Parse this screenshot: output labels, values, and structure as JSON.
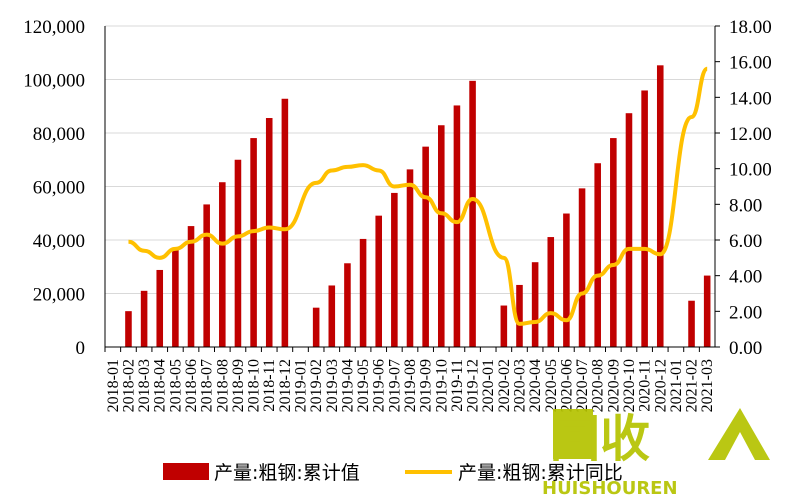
{
  "chart_data": {
    "type": "bar+line",
    "title": "",
    "xlabel": "",
    "ylabel": "",
    "y2label": "",
    "ylim": [
      0,
      120000
    ],
    "y2lim": [
      0,
      18
    ],
    "yticks": [
      "0",
      "20,000",
      "40,000",
      "60,000",
      "80,000",
      "100,000",
      "120,000"
    ],
    "y2ticks": [
      "0.00",
      "2.00",
      "4.00",
      "6.00",
      "8.00",
      "10.00",
      "12.00",
      "14.00",
      "16.00",
      "18.00"
    ],
    "grid": "horizontal",
    "legend_position": "bottom",
    "categories": [
      "2018-01",
      "2018-02",
      "2018-03",
      "2018-04",
      "2018-05",
      "2018-06",
      "2018-07",
      "2018-08",
      "2018-09",
      "2018-10",
      "2018-11",
      "2018-12",
      "2019-01",
      "2019-02",
      "2019-03",
      "2019-04",
      "2019-05",
      "2019-06",
      "2019-07",
      "2019-08",
      "2019-09",
      "2019-10",
      "2019-11",
      "2019-12",
      "2020-01",
      "2020-02",
      "2020-03",
      "2020-04",
      "2020-05",
      "2020-06",
      "2020-07",
      "2020-08",
      "2020-09",
      "2020-10",
      "2020-11",
      "2020-12",
      "2021-01",
      "2021-02",
      "2021-03"
    ],
    "series": [
      {
        "name": "产量:粗钢:累计值",
        "kind": "bar",
        "axis": "left",
        "color": "#c00000",
        "values": [
          null,
          13400,
          21000,
          28800,
          37200,
          45200,
          53300,
          61600,
          70000,
          78100,
          85600,
          92800,
          null,
          14700,
          23000,
          31300,
          40400,
          49100,
          57600,
          66400,
          74900,
          82900,
          90300,
          99500,
          null,
          15500,
          23200,
          31700,
          41100,
          49900,
          59300,
          68700,
          78100,
          87400,
          95900,
          105300,
          null,
          17300,
          26700
        ]
      },
      {
        "name": "产量:粗钢:累计同比",
        "kind": "line",
        "axis": "right",
        "color": "#ffc000",
        "values": [
          null,
          5.9,
          5.4,
          5.0,
          5.5,
          5.9,
          6.3,
          5.8,
          6.2,
          6.5,
          6.7,
          6.6,
          null,
          9.2,
          9.9,
          10.1,
          10.2,
          9.9,
          9.0,
          9.1,
          8.4,
          7.5,
          7.0,
          8.3,
          null,
          5.0,
          1.3,
          1.4,
          1.9,
          1.5,
          3.0,
          4.0,
          4.6,
          5.5,
          5.5,
          5.2,
          null,
          12.9,
          15.6
        ]
      }
    ]
  },
  "watermark": {
    "main": "回收",
    "sub": "HUISHOUREN"
  }
}
